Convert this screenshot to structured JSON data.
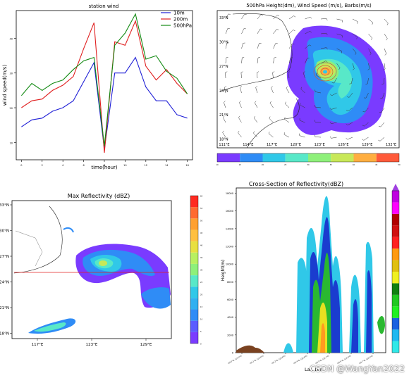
{
  "chart_data": [
    {
      "type": "line",
      "title": "station wind",
      "xlabel": "time(hour)",
      "ylabel": "wind speed(m/s)",
      "x": [
        0,
        1,
        2,
        3,
        4,
        5,
        6,
        7,
        8,
        9,
        10,
        11,
        12,
        13,
        14,
        15,
        16
      ],
      "x_ticks": [
        "0",
        "2",
        "4",
        "6",
        "8",
        "10",
        "12",
        "14",
        "16"
      ],
      "y_ticks": [
        "10",
        "20",
        "30",
        "40"
      ],
      "ylim": [
        5,
        48
      ],
      "xlim": [
        -0.5,
        16.5
      ],
      "legend_position": "upper right",
      "series": [
        {
          "name": "10m",
          "color": "#1f1fd6",
          "values": [
            14.5,
            16.5,
            17,
            19,
            20,
            22,
            27.5,
            33,
            8,
            30,
            30,
            34.5,
            26,
            22,
            22,
            18,
            17
          ]
        },
        {
          "name": "200m",
          "color": "#e02020",
          "values": [
            20,
            22,
            22.5,
            25,
            26.5,
            29,
            37,
            44.5,
            7,
            39,
            38,
            45,
            32,
            28,
            31,
            27,
            24
          ]
        },
        {
          "name": "500hPa",
          "color": "#138a13",
          "values": [
            23.5,
            27,
            25,
            27,
            28,
            31,
            33.5,
            34.5,
            9,
            38,
            41.5,
            47,
            34,
            35,
            30.5,
            28.5,
            24
          ]
        }
      ]
    },
    {
      "type": "map",
      "title": "500hPa Height(dm), Wind Speed (m/s), Barbs(m/s)",
      "lon_ticks": [
        "111°E",
        "114°E",
        "117°E",
        "120°E",
        "123°E",
        "126°E",
        "129°E",
        "132°E"
      ],
      "lat_ticks": [
        "33°N",
        "30°N",
        "27°N",
        "24°N",
        "21°N",
        "18°N"
      ],
      "colorbar_ticks": [
        "10",
        "15",
        "20",
        "25",
        "30",
        "35",
        "40",
        "45",
        "50"
      ],
      "colorbar_colors": [
        "#7a3bff",
        "#2f8cf6",
        "#30c8e8",
        "#58e8c8",
        "#8ef07a",
        "#c8e858",
        "#ffae40",
        "#ff5a3a"
      ]
    },
    {
      "type": "map",
      "title": "Max Reflectivity (dBZ)",
      "lon_ticks": [
        "117°E",
        "123°E",
        "129°E"
      ],
      "lat_ticks": [
        "33°N",
        "30°N",
        "27°N",
        "24°N",
        "21°N",
        "18°N"
      ],
      "colorbar_ticks": [
        "0",
        "5",
        "10",
        "15",
        "20",
        "25",
        "30",
        "35",
        "40",
        "45",
        "50",
        "55",
        "60"
      ]
    },
    {
      "type": "heatmap",
      "title": "Cross-Section of Reflectivity(dBZ)",
      "xlabel": "Lat, Lon",
      "ylabel": "Height(m)",
      "y_ticks": [
        "0",
        "2000",
        "4000",
        "6000",
        "8000",
        "10000",
        "12000",
        "14000",
        "16000",
        "18000"
      ],
      "x_ticks": [
        "(25.0°N, 115.0°E)",
        "(25.1°N, 116.9°E)",
        "(25.2°N, 118.8°E)",
        "(25.4°N, 120.8°E)",
        "(25.5°N, 122.7°E)",
        "(25.6°N, 124.6°E)",
        "(25.7°N, 126.5°E)"
      ]
    }
  ],
  "watermark": "CSDN @WangYan2022"
}
